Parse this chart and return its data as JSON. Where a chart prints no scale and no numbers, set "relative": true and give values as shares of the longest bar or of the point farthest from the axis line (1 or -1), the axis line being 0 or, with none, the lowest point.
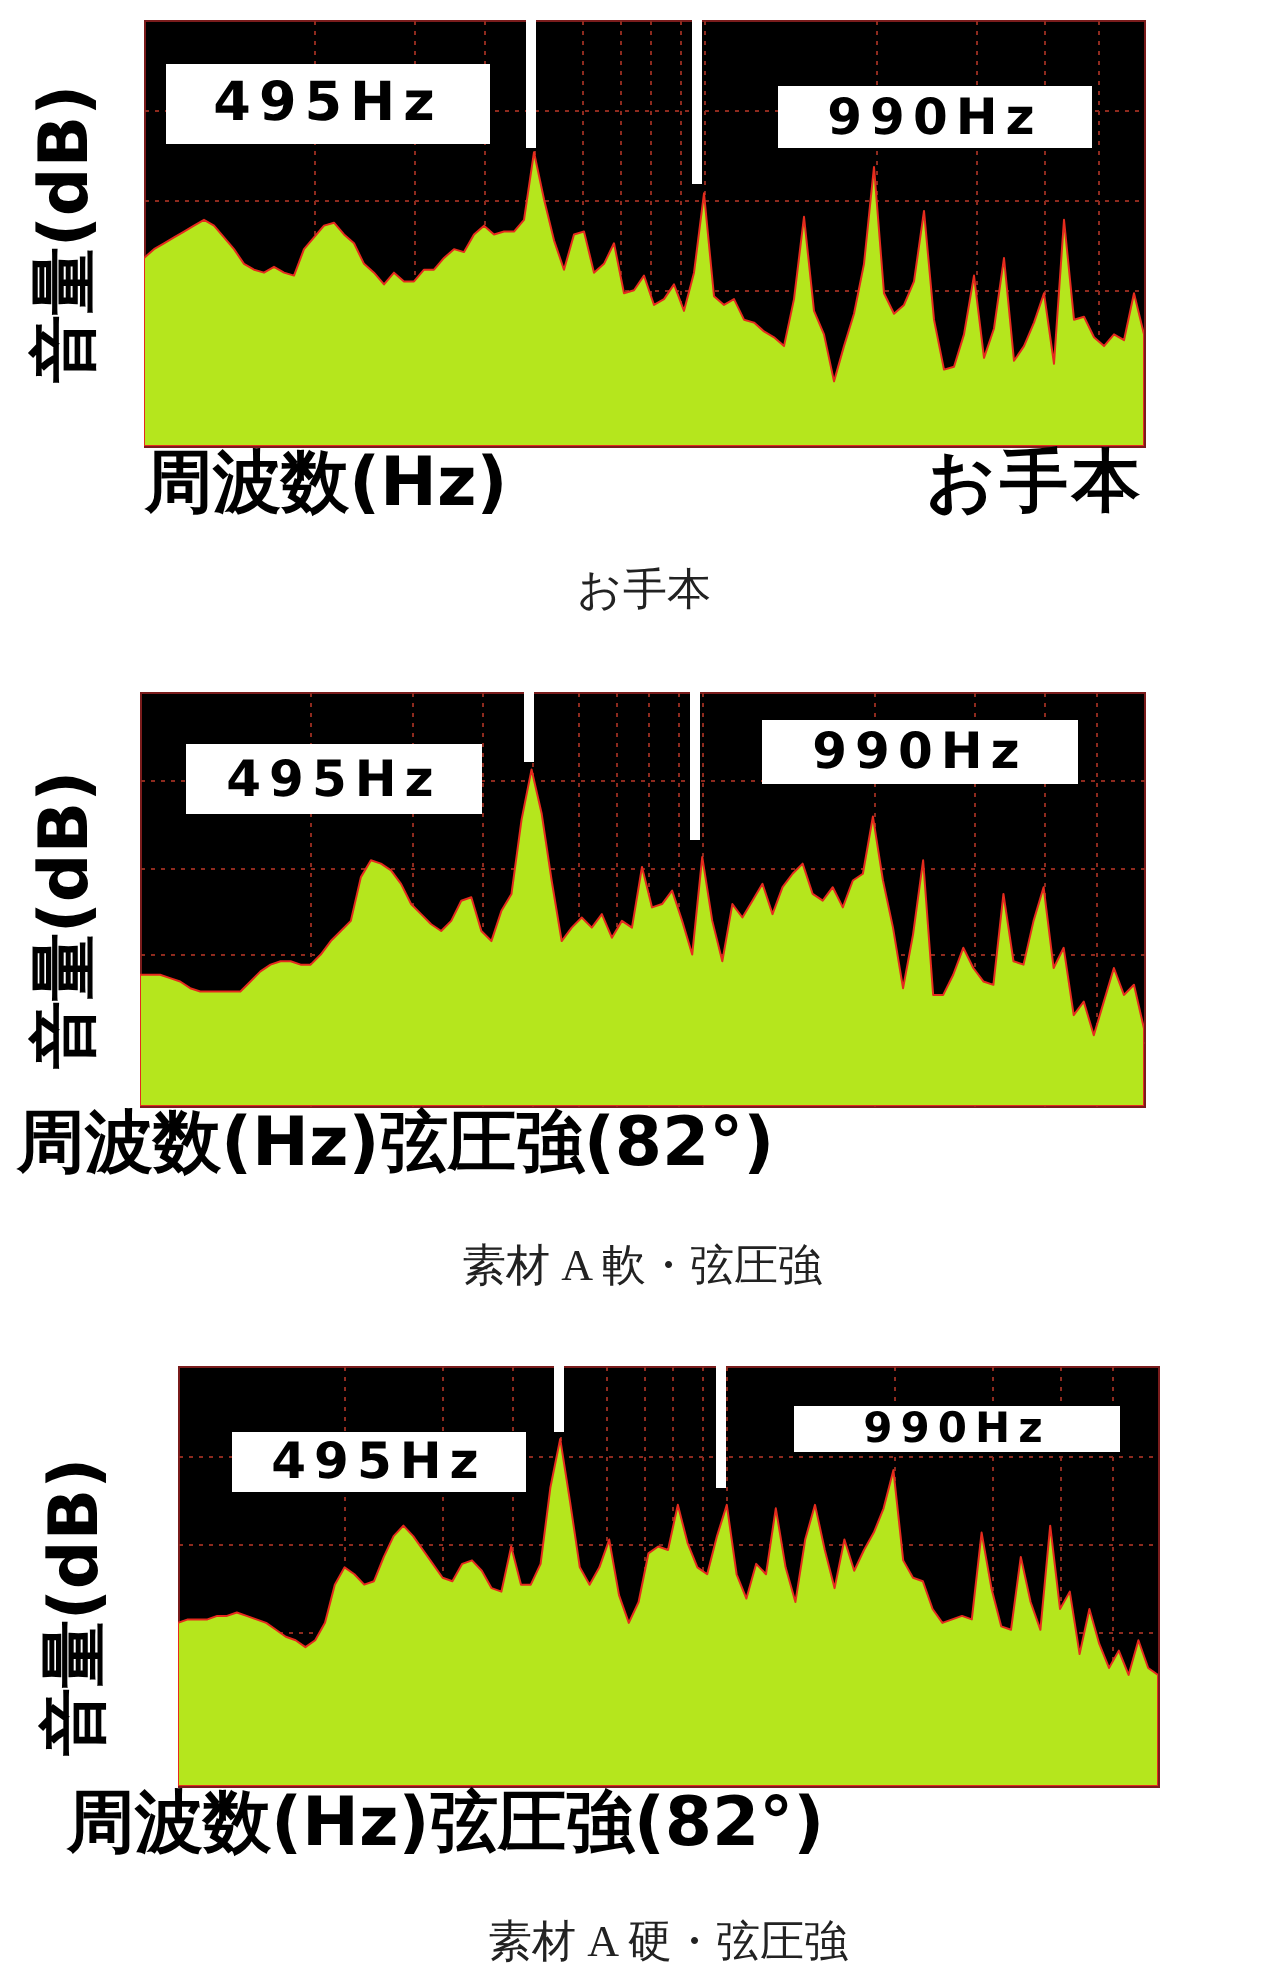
{
  "chart_data": [
    {
      "type": "area",
      "title": "お手本",
      "xlabel": "周波数(Hz)",
      "ylabel": "音量(dB)",
      "annotations": [
        "495Hz",
        "990Hz",
        "お手本"
      ],
      "relative": true,
      "grid": true,
      "color": "#b5e61d",
      "categories": [
        null,
        null,
        null,
        null,
        null,
        null,
        null,
        null,
        null,
        null,
        null,
        null,
        null,
        null,
        null,
        null,
        null,
        null,
        null,
        null,
        null,
        null,
        null,
        null,
        null,
        null,
        null,
        null,
        null,
        null,
        null,
        null,
        null,
        null,
        null,
        null,
        null,
        null,
        null,
        null,
        null,
        null,
        null,
        null,
        null,
        null,
        null,
        null,
        null,
        null,
        null,
        null,
        null,
        null,
        null,
        null,
        null,
        null,
        null,
        null,
        null,
        null,
        null,
        null,
        null,
        null,
        null,
        null,
        null,
        null,
        null,
        null,
        null,
        null,
        null,
        null,
        null,
        null,
        null,
        null,
        null,
        null,
        null,
        null,
        null,
        null,
        null,
        null,
        null,
        null,
        null,
        null,
        null,
        null,
        null,
        null,
        null,
        null,
        null,
        null,
        null
      ],
      "values": [
        0.64,
        0.67,
        0.69,
        0.71,
        0.73,
        0.75,
        0.77,
        0.75,
        0.71,
        0.67,
        0.62,
        0.6,
        0.59,
        0.61,
        0.59,
        0.58,
        0.67,
        0.71,
        0.75,
        0.76,
        0.72,
        0.69,
        0.62,
        0.59,
        0.55,
        0.59,
        0.56,
        0.56,
        0.6,
        0.6,
        0.64,
        0.67,
        0.66,
        0.72,
        0.75,
        0.72,
        0.73,
        0.73,
        0.77,
        1,
        0.84,
        0.7,
        0.6,
        0.72,
        0.73,
        0.59,
        0.62,
        0.69,
        0.52,
        0.53,
        0.58,
        0.48,
        0.5,
        0.55,
        0.46,
        0.59,
        0.86,
        0.51,
        0.48,
        0.5,
        0.43,
        0.42,
        0.39,
        0.37,
        0.34,
        0.5,
        0.78,
        0.46,
        0.38,
        0.22,
        0.34,
        0.45,
        0.62,
        0.95,
        0.52,
        0.45,
        0.48,
        0.56,
        0.8,
        0.43,
        0.26,
        0.27,
        0.38,
        0.58,
        0.3,
        0.4,
        0.64,
        0.29,
        0.34,
        0.42,
        0.52,
        0.28,
        0.77,
        0.43,
        0.44,
        0.37,
        0.34,
        0.38,
        0.36,
        0.52,
        0.38
      ]
    },
    {
      "type": "area",
      "title": "素材 A 軟・弦圧強",
      "xlabel": "周波数(Hz)弦圧強(82°)",
      "ylabel": "音量(dB)",
      "annotations": [
        "495Hz",
        "990Hz"
      ],
      "relative": true,
      "grid": true,
      "color": "#b5e61d",
      "categories": [
        null,
        null,
        null,
        null,
        null,
        null,
        null,
        null,
        null,
        null,
        null,
        null,
        null,
        null,
        null,
        null,
        null,
        null,
        null,
        null,
        null,
        null,
        null,
        null,
        null,
        null,
        null,
        null,
        null,
        null,
        null,
        null,
        null,
        null,
        null,
        null,
        null,
        null,
        null,
        null,
        null,
        null,
        null,
        null,
        null,
        null,
        null,
        null,
        null,
        null,
        null,
        null,
        null,
        null,
        null,
        null,
        null,
        null,
        null,
        null,
        null,
        null,
        null,
        null,
        null,
        null,
        null,
        null,
        null,
        null,
        null,
        null,
        null,
        null,
        null,
        null,
        null,
        null,
        null,
        null,
        null,
        null,
        null,
        null,
        null,
        null,
        null,
        null,
        null,
        null,
        null,
        null,
        null,
        null,
        null,
        null,
        null,
        null,
        null,
        null,
        null
      ],
      "values": [
        0.39,
        0.39,
        0.39,
        0.38,
        0.37,
        0.35,
        0.34,
        0.34,
        0.34,
        0.34,
        0.34,
        0.37,
        0.4,
        0.42,
        0.43,
        0.43,
        0.42,
        0.42,
        0.45,
        0.49,
        0.52,
        0.55,
        0.68,
        0.73,
        0.72,
        0.7,
        0.66,
        0.6,
        0.57,
        0.54,
        0.52,
        0.55,
        0.61,
        0.62,
        0.52,
        0.49,
        0.58,
        0.63,
        0.85,
        1,
        0.87,
        0.67,
        0.49,
        0.53,
        0.56,
        0.53,
        0.57,
        0.5,
        0.55,
        0.53,
        0.71,
        0.59,
        0.6,
        0.64,
        0.55,
        0.45,
        0.74,
        0.55,
        0.43,
        0.6,
        0.56,
        0.61,
        0.66,
        0.57,
        0.65,
        0.69,
        0.72,
        0.63,
        0.61,
        0.65,
        0.59,
        0.67,
        0.69,
        0.86,
        0.67,
        0.53,
        0.35,
        0.51,
        0.73,
        0.33,
        0.33,
        0.39,
        0.47,
        0.41,
        0.37,
        0.36,
        0.63,
        0.43,
        0.42,
        0.55,
        0.65,
        0.41,
        0.47,
        0.27,
        0.31,
        0.21,
        0.31,
        0.41,
        0.33,
        0.36,
        0.23
      ]
    },
    {
      "type": "area",
      "title": "素材 A 硬・弦圧強",
      "xlabel": "周波数(Hz)弦圧強(82°)",
      "ylabel": "音量(dB)",
      "annotations": [
        "495Hz",
        "990Hz"
      ],
      "relative": true,
      "grid": true,
      "color": "#b5e61d",
      "categories": [
        null,
        null,
        null,
        null,
        null,
        null,
        null,
        null,
        null,
        null,
        null,
        null,
        null,
        null,
        null,
        null,
        null,
        null,
        null,
        null,
        null,
        null,
        null,
        null,
        null,
        null,
        null,
        null,
        null,
        null,
        null,
        null,
        null,
        null,
        null,
        null,
        null,
        null,
        null,
        null,
        null,
        null,
        null,
        null,
        null,
        null,
        null,
        null,
        null,
        null,
        null,
        null,
        null,
        null,
        null,
        null,
        null,
        null,
        null,
        null,
        null,
        null,
        null,
        null,
        null,
        null,
        null,
        null,
        null,
        null,
        null,
        null,
        null,
        null,
        null,
        null,
        null,
        null,
        null,
        null,
        null,
        null,
        null,
        null,
        null,
        null,
        null,
        null,
        null,
        null,
        null,
        null,
        null,
        null,
        null,
        null,
        null,
        null,
        null,
        null,
        null
      ],
      "values": [
        0.47,
        0.48,
        0.48,
        0.48,
        0.49,
        0.49,
        0.5,
        0.49,
        0.48,
        0.47,
        0.45,
        0.43,
        0.42,
        0.4,
        0.42,
        0.47,
        0.58,
        0.63,
        0.61,
        0.58,
        0.59,
        0.66,
        0.72,
        0.75,
        0.72,
        0.68,
        0.64,
        0.6,
        0.59,
        0.64,
        0.65,
        0.62,
        0.57,
        0.56,
        0.69,
        0.58,
        0.58,
        0.64,
        0.86,
        1,
        0.82,
        0.63,
        0.58,
        0.63,
        0.71,
        0.55,
        0.47,
        0.53,
        0.67,
        0.69,
        0.68,
        0.81,
        0.7,
        0.63,
        0.61,
        0.72,
        0.81,
        0.61,
        0.54,
        0.64,
        0.61,
        0.8,
        0.63,
        0.53,
        0.71,
        0.81,
        0.68,
        0.57,
        0.71,
        0.62,
        0.68,
        0.73,
        0.8,
        0.91,
        0.65,
        0.6,
        0.59,
        0.51,
        0.47,
        0.48,
        0.49,
        0.48,
        0.73,
        0.57,
        0.46,
        0.45,
        0.66,
        0.53,
        0.45,
        0.75,
        0.51,
        0.56,
        0.38,
        0.51,
        0.41,
        0.34,
        0.39,
        0.32,
        0.42,
        0.34,
        0.32
      ]
    }
  ]
}
